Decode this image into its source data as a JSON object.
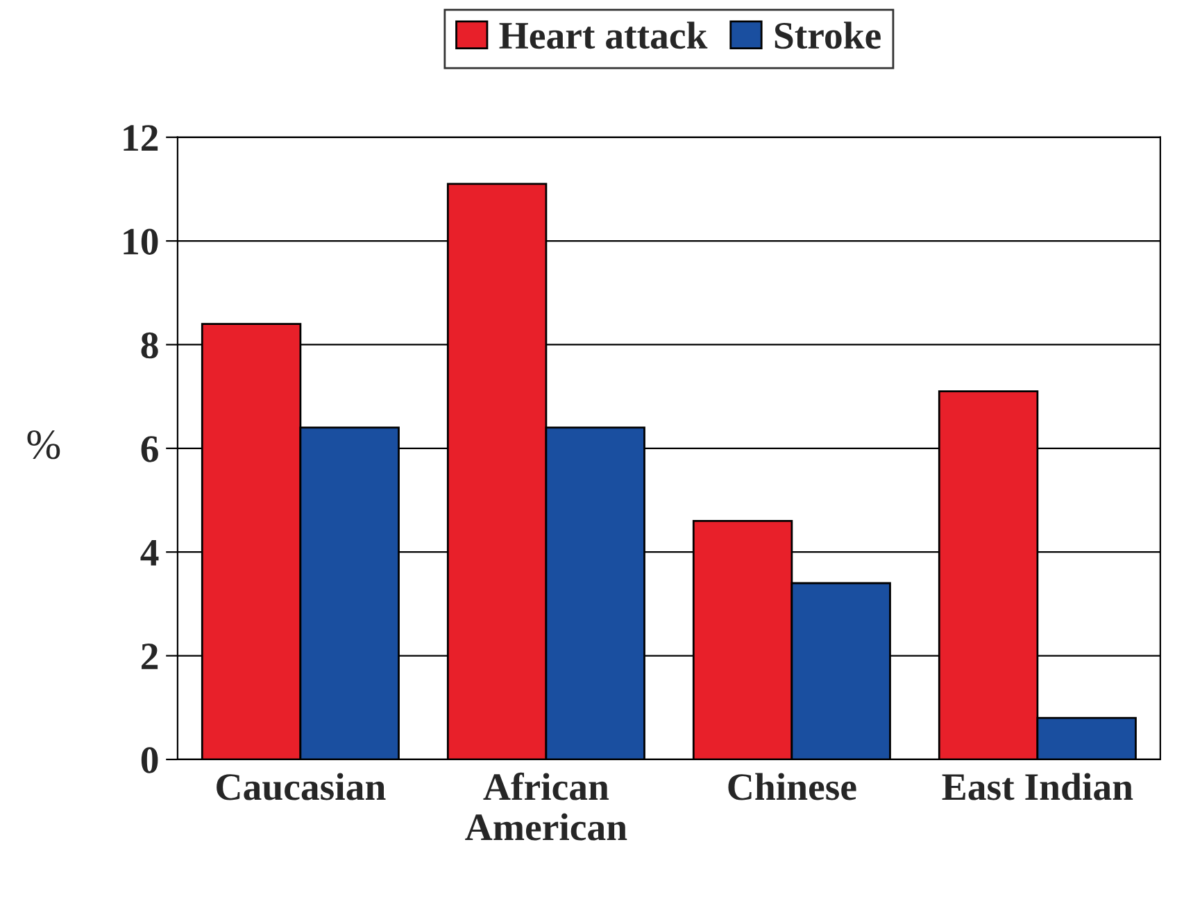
{
  "chart_data": {
    "type": "bar",
    "ylabel": "%",
    "categories": [
      "Caucasian",
      "African\nAmerican",
      "Chinese",
      "East Indian"
    ],
    "series": [
      {
        "name": "Heart attack",
        "color": "#e8202a",
        "values": [
          8.4,
          11.1,
          4.6,
          7.1
        ]
      },
      {
        "name": "Stroke",
        "color": "#1a4fa0",
        "values": [
          6.4,
          6.4,
          3.4,
          0.8
        ]
      }
    ],
    "ylim": [
      0,
      12
    ],
    "yticks": [
      0,
      2,
      4,
      6,
      8,
      10,
      12
    ],
    "grid": "y",
    "legend": "top"
  }
}
